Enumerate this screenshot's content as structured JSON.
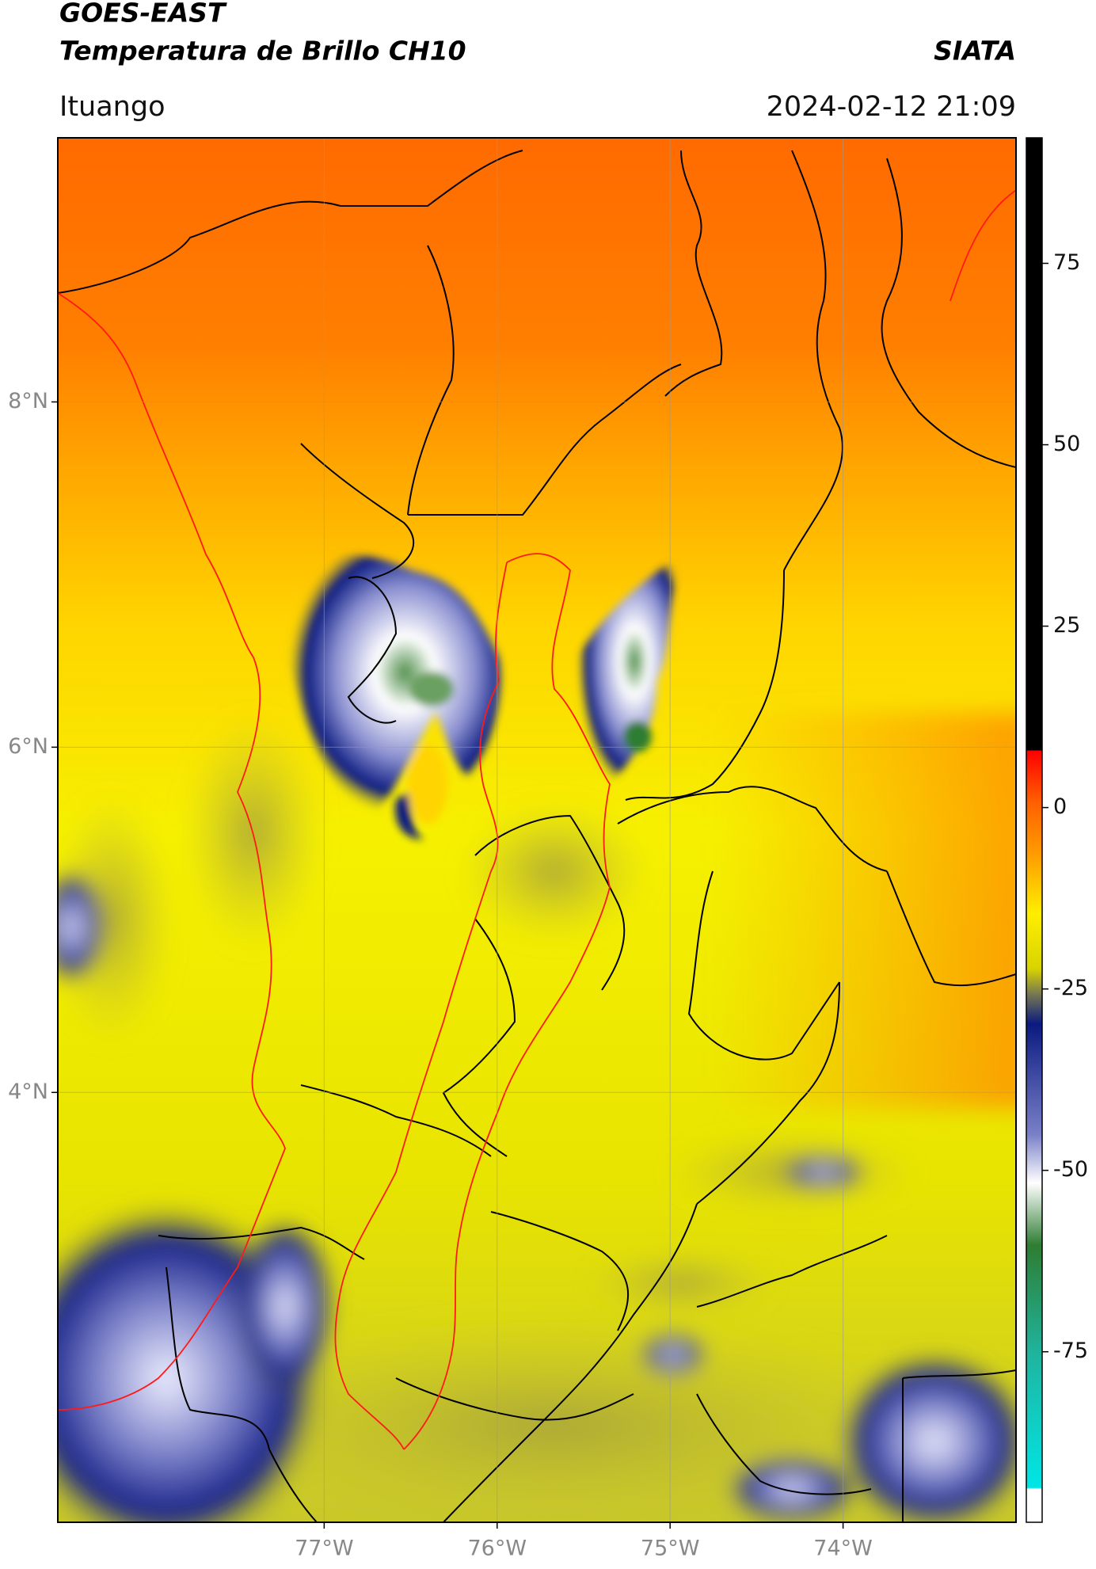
{
  "header": {
    "title": "GOES-EAST",
    "subtitle": "Temperatura de Brillo CH10",
    "source": "SIATA",
    "location": "Ituango",
    "datetime": "2024-02-12 21:09"
  },
  "map": {
    "xlim": [
      -78.54,
      -73.0
    ],
    "ylim": [
      1.51,
      9.53
    ],
    "xticks": [
      {
        "value": -77,
        "label": "77°W"
      },
      {
        "value": -76,
        "label": "76°W"
      },
      {
        "value": -75,
        "label": "75°W"
      },
      {
        "value": -74,
        "label": "74°W"
      }
    ],
    "yticks": [
      {
        "value": 8,
        "label": "8°N"
      },
      {
        "value": 6,
        "label": "6°N"
      },
      {
        "value": 4,
        "label": "4°N"
      }
    ],
    "grid": true
  },
  "colorbar": {
    "lim": [
      -98.5,
      92.3
    ],
    "ticks": [
      75,
      50,
      25,
      0,
      -25,
      -50,
      -75
    ]
  }
}
